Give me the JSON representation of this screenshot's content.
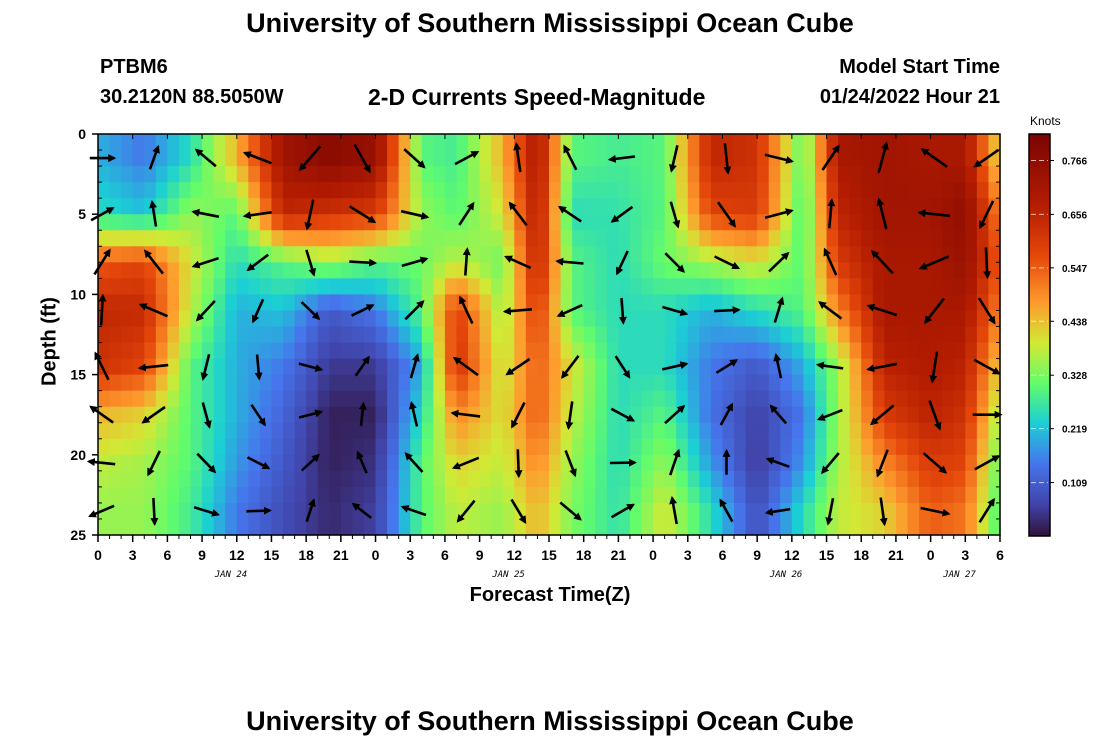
{
  "header": {
    "title": "University of Southern Mississippi Ocean Cube",
    "station": "PTBM6",
    "coords": "30.2120N  88.5050W",
    "subtitle": "2-D Currents Speed-Magnitude",
    "model_start_label": "Model Start Time",
    "model_start_value": "01/24/2022 Hour 21"
  },
  "footer": {
    "title_repeat": "University of Southern Mississippi Ocean Cube"
  },
  "colors": {
    "low": "#30123b",
    "mid": "#a4fc3c",
    "high": "#7a0403",
    "arrow": "#000000"
  },
  "chart_data": {
    "type": "heatmap",
    "xlabel": "Forecast Time(Z)",
    "ylabel": "Depth (ft)",
    "xlim": [
      0,
      78
    ],
    "ylim": [
      0,
      25
    ],
    "y_inverted": true,
    "x_tick_labels": [
      "0",
      "3",
      "6",
      "9",
      "12",
      "15",
      "18",
      "21",
      "0",
      "3",
      "6",
      "9",
      "12",
      "15",
      "18",
      "21",
      "0",
      "3",
      "6",
      "9",
      "12",
      "15",
      "18",
      "21",
      "0",
      "3",
      "6"
    ],
    "y_tick_labels": [
      "0",
      "5",
      "10",
      "15",
      "20",
      "25"
    ],
    "date_labels": [
      {
        "label": "JAN 24",
        "hour": 11.5
      },
      {
        "label": "JAN 25",
        "hour": 35.5
      },
      {
        "label": "JAN 26",
        "hour": 59.5
      },
      {
        "label": "JAN 27",
        "hour": 74.5
      }
    ],
    "colorbar": {
      "unit": "Knots",
      "range": [
        0.0,
        0.82
      ],
      "ticks": [
        "0.766",
        "0.656",
        "0.547",
        "0.438",
        "0.328",
        "0.219",
        "0.109"
      ],
      "tick_values": [
        0.766,
        0.656,
        0.547,
        0.438,
        0.328,
        0.219,
        0.109
      ]
    },
    "arrow_hours": [
      0,
      4.5,
      9,
      13.5,
      18,
      22.5,
      27,
      31.5,
      36,
      40.5,
      45,
      49.5,
      54,
      58.5,
      63,
      67.5,
      72,
      76.5
    ],
    "arrow_depths": [
      1.5,
      5,
      8,
      11,
      14.5,
      17.5,
      20.5,
      23.5
    ],
    "speed_by_hour": [
      {
        "hour": 0,
        "values": [
          0.2,
          0.25,
          0.55,
          0.65,
          0.62,
          0.45,
          0.38,
          0.35
        ]
      },
      {
        "hour": 4,
        "values": [
          0.15,
          0.22,
          0.58,
          0.64,
          0.58,
          0.42,
          0.36,
          0.35
        ]
      },
      {
        "hour": 8,
        "values": [
          0.25,
          0.35,
          0.4,
          0.38,
          0.3,
          0.3,
          0.3,
          0.28
        ]
      },
      {
        "hour": 12,
        "values": [
          0.45,
          0.3,
          0.25,
          0.2,
          0.2,
          0.2,
          0.18,
          0.15
        ]
      },
      {
        "hour": 16,
        "values": [
          0.72,
          0.65,
          0.3,
          0.22,
          0.15,
          0.12,
          0.1,
          0.08
        ]
      },
      {
        "hour": 20,
        "values": [
          0.78,
          0.62,
          0.35,
          0.1,
          0.05,
          0.02,
          0.02,
          0.03
        ]
      },
      {
        "hour": 24,
        "values": [
          0.74,
          0.6,
          0.3,
          0.15,
          0.05,
          0.02,
          0.04,
          0.06
        ]
      },
      {
        "hour": 28,
        "values": [
          0.3,
          0.35,
          0.32,
          0.3,
          0.2,
          0.25,
          0.3,
          0.3
        ]
      },
      {
        "hour": 31,
        "values": [
          0.28,
          0.3,
          0.38,
          0.6,
          0.62,
          0.5,
          0.42,
          0.38
        ]
      },
      {
        "hour": 35,
        "values": [
          0.45,
          0.4,
          0.32,
          0.35,
          0.38,
          0.4,
          0.38,
          0.35
        ]
      },
      {
        "hour": 38,
        "values": [
          0.7,
          0.68,
          0.66,
          0.6,
          0.55,
          0.55,
          0.5,
          0.45
        ]
      },
      {
        "hour": 41,
        "values": [
          0.3,
          0.25,
          0.3,
          0.3,
          0.4,
          0.38,
          0.35,
          0.33
        ]
      },
      {
        "hour": 45,
        "values": [
          0.28,
          0.26,
          0.25,
          0.25,
          0.25,
          0.25,
          0.25,
          0.26
        ]
      },
      {
        "hour": 49,
        "values": [
          0.3,
          0.3,
          0.32,
          0.25,
          0.25,
          0.3,
          0.35,
          0.4
        ]
      },
      {
        "hour": 53,
        "values": [
          0.65,
          0.58,
          0.36,
          0.2,
          0.15,
          0.14,
          0.18,
          0.25
        ]
      },
      {
        "hour": 57,
        "values": [
          0.62,
          0.6,
          0.4,
          0.25,
          0.1,
          0.06,
          0.05,
          0.08
        ]
      },
      {
        "hour": 61,
        "values": [
          0.3,
          0.28,
          0.3,
          0.3,
          0.2,
          0.15,
          0.18,
          0.25
        ]
      },
      {
        "hour": 64,
        "values": [
          0.7,
          0.65,
          0.6,
          0.5,
          0.35,
          0.35,
          0.36,
          0.38
        ]
      },
      {
        "hour": 68,
        "values": [
          0.72,
          0.72,
          0.7,
          0.7,
          0.66,
          0.6,
          0.5,
          0.42
        ]
      },
      {
        "hour": 72,
        "values": [
          0.7,
          0.72,
          0.7,
          0.7,
          0.68,
          0.66,
          0.6,
          0.55
        ]
      },
      {
        "hour": 75,
        "values": [
          0.7,
          0.76,
          0.74,
          0.7,
          0.66,
          0.62,
          0.58,
          0.52
        ]
      },
      {
        "hour": 78,
        "values": [
          0.4,
          0.5,
          0.55,
          0.5,
          0.42,
          0.35,
          0.3,
          0.28
        ]
      }
    ]
  }
}
